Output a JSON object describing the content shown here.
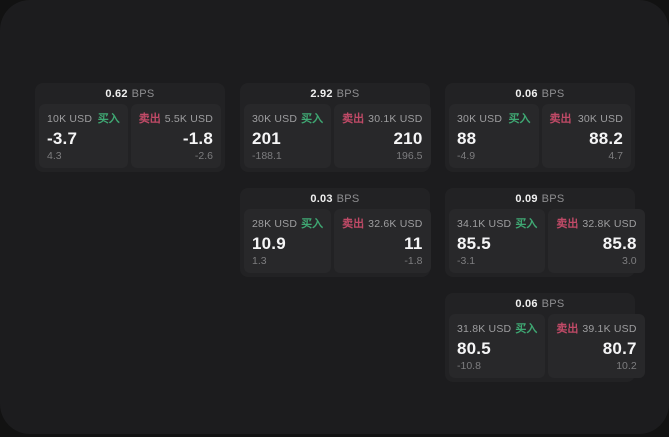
{
  "labels": {
    "bps_unit": "BPS",
    "buy": "买入",
    "sell": "卖出"
  },
  "colors": {
    "panel": "#1c1c1e",
    "card": "#222224",
    "tile": "#28282a",
    "buy_green": "#3fa873",
    "sell_red": "#c04a67"
  },
  "cards": [
    {
      "bps": "0.62",
      "buy": {
        "amount": "10K USD",
        "price": "-3.7",
        "delta": "4.3"
      },
      "sell": {
        "amount": "5.5K USD",
        "price": "-1.8",
        "delta": "-2.6"
      }
    },
    {
      "bps": "2.92",
      "buy": {
        "amount": "30K USD",
        "price": "201",
        "delta": "-188.1"
      },
      "sell": {
        "amount": "30.1K USD",
        "price": "210",
        "delta": "196.5"
      }
    },
    {
      "bps": "0.06",
      "buy": {
        "amount": "30K USD",
        "price": "88",
        "delta": "-4.9"
      },
      "sell": {
        "amount": "30K USD",
        "price": "88.2",
        "delta": "4.7"
      }
    },
    {
      "bps": "0.03",
      "buy": {
        "amount": "28K USD",
        "price": "10.9",
        "delta": "1.3"
      },
      "sell": {
        "amount": "32.6K USD",
        "price": "11",
        "delta": "-1.8"
      }
    },
    {
      "bps": "0.09",
      "buy": {
        "amount": "34.1K USD",
        "price": "85.5",
        "delta": "-3.1"
      },
      "sell": {
        "amount": "32.8K USD",
        "price": "85.8",
        "delta": "3.0"
      }
    },
    {
      "bps": "0.06",
      "buy": {
        "amount": "31.8K USD",
        "price": "80.5",
        "delta": "-10.8"
      },
      "sell": {
        "amount": "39.1K USD",
        "price": "80.7",
        "delta": "10.2"
      }
    }
  ]
}
